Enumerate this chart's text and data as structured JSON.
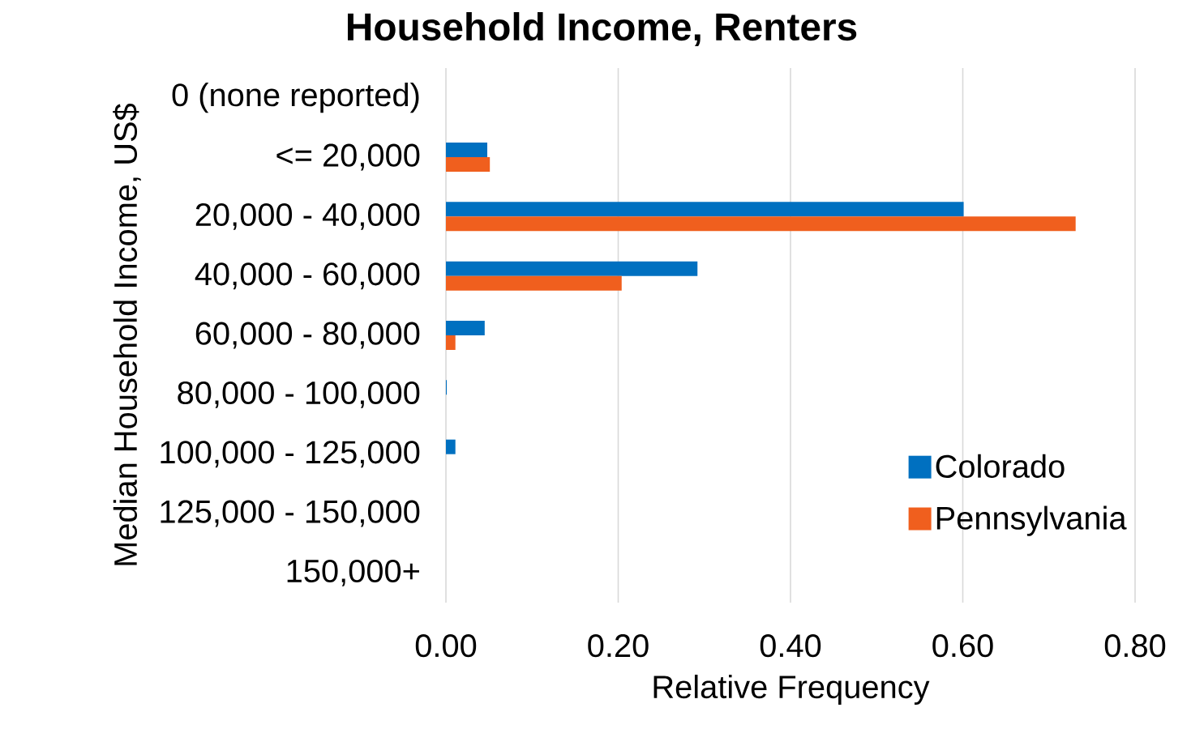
{
  "chart_data": {
    "type": "bar",
    "orientation": "horizontal",
    "title": "Household Income, Renters",
    "xlabel": "Relative Frequency",
    "ylabel": "Median Household Income, US$",
    "categories": [
      "0 (none reported)",
      "<= 20,000",
      "20,000 - 40,000",
      "40,000 - 60,000",
      "60,000 - 80,000",
      "80,000 - 100,000",
      "100,000 - 125,000",
      "125,000 - 150,000",
      "150,000+"
    ],
    "series": [
      {
        "name": "Colorado",
        "color": "#0070c0",
        "values": [
          0,
          0.048,
          0.601,
          0.292,
          0.045,
          0.001,
          0.011,
          0,
          0
        ]
      },
      {
        "name": "Pennsylvania",
        "color": "#f05f1e",
        "values": [
          0,
          0.051,
          0.731,
          0.204,
          0.011,
          0,
          0,
          0,
          0
        ]
      }
    ],
    "xlim": [
      0,
      0.8
    ],
    "xticks": [
      {
        "value": 0,
        "label": "0.00"
      },
      {
        "value": 0.2,
        "label": "0.20"
      },
      {
        "value": 0.4,
        "label": "0.40"
      },
      {
        "value": 0.6,
        "label": "0.60"
      },
      {
        "value": 0.8,
        "label": "0.80"
      }
    ],
    "grid": "x",
    "legend": "bottom right"
  }
}
